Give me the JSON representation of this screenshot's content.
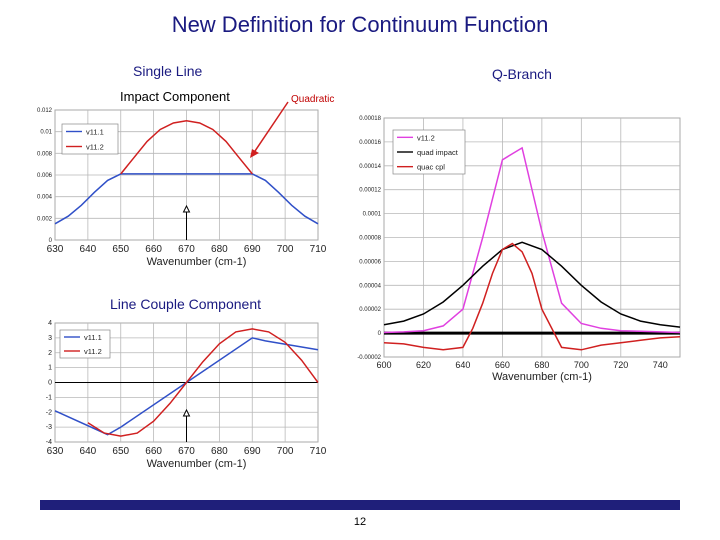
{
  "slide": {
    "title": "New Definition for Continuum Function",
    "left_heading": "Single Line",
    "right_heading": "Q-Branch",
    "impact_label": "Impact Component",
    "quadratic_label": "Quadratic",
    "couple_label": "Line Couple Component",
    "page_number": "12",
    "colors": {
      "title": "#1a1a80",
      "footer_bar": "#1f1f7a",
      "blue": "#3050c8",
      "red": "#d02020",
      "magenta": "#e040e0",
      "black": "#000000"
    }
  },
  "chart_data": [
    {
      "type": "line",
      "id": "impact",
      "xlabel": "Wavenumber (cm-1)",
      "xlim": [
        630,
        710
      ],
      "ylim": [
        0,
        0.012
      ],
      "xticks": [
        630,
        640,
        650,
        660,
        670,
        680,
        690,
        700,
        710
      ],
      "yticks": [
        "0",
        "0.002",
        "0.004",
        "0.006",
        "0.008",
        "0.01",
        "0.012"
      ],
      "legend": "top-left",
      "grid": true,
      "series": [
        {
          "name": "v11.1",
          "color": "#3050c8",
          "x": [
            630,
            634,
            638,
            642,
            646,
            650,
            670,
            690,
            694,
            698,
            702,
            706,
            710
          ],
          "y": [
            0.0015,
            0.0022,
            0.0032,
            0.0044,
            0.0055,
            0.0061,
            0.0061,
            0.0061,
            0.0055,
            0.0044,
            0.0032,
            0.0022,
            0.0015
          ]
        },
        {
          "name": "v11.2",
          "color": "#d02020",
          "x": [
            650,
            654,
            658,
            662,
            666,
            670,
            674,
            678,
            682,
            686,
            690
          ],
          "y": [
            0.0061,
            0.0076,
            0.0091,
            0.0102,
            0.0108,
            0.011,
            0.0108,
            0.0102,
            0.0091,
            0.0076,
            0.0061
          ]
        }
      ]
    },
    {
      "type": "line",
      "id": "couple",
      "xlabel": "Wavenumber (cm-1)",
      "xlim": [
        630,
        710
      ],
      "ylim": [
        -4,
        4
      ],
      "xticks": [
        630,
        640,
        650,
        660,
        670,
        680,
        690,
        700,
        710
      ],
      "yticks": [
        "4",
        "3",
        "2",
        "1",
        "0",
        "-1",
        "-2",
        "-3",
        "-4"
      ],
      "legend": "top-left",
      "grid": true,
      "series": [
        {
          "name": "v11.1",
          "color": "#3050c8",
          "x": [
            630,
            646,
            650,
            670,
            690,
            694,
            710
          ],
          "y": [
            -1.9,
            -3.5,
            -3.0,
            0,
            3.0,
            2.8,
            2.2
          ]
        },
        {
          "name": "v11.2",
          "color": "#d02020",
          "x": [
            640,
            645,
            650,
            655,
            660,
            665,
            670,
            675,
            680,
            685,
            690,
            695,
            700,
            705,
            710
          ],
          "y": [
            -2.7,
            -3.4,
            -3.6,
            -3.4,
            -2.6,
            -1.4,
            0,
            1.4,
            2.6,
            3.4,
            3.6,
            3.4,
            2.7,
            1.5,
            0
          ]
        }
      ]
    },
    {
      "type": "line",
      "id": "qbranch",
      "xlabel": "Wavenumber (cm-1)",
      "xlim": [
        600,
        750
      ],
      "ylim": [
        -2e-05,
        0.00018
      ],
      "xticks": [
        600,
        620,
        640,
        660,
        680,
        700,
        720,
        740
      ],
      "yticks": [
        "0.00018",
        "0.00016",
        "0.00014",
        "0.00012",
        "0.0001",
        "0.00008",
        "0.00006",
        "0.00004",
        "0.00002",
        "0",
        "-0.00002"
      ],
      "legend": "top-left",
      "grid": true,
      "series": [
        {
          "name": "v11.2",
          "color": "#e040e0",
          "x": [
            600,
            610,
            620,
            630,
            640,
            650,
            660,
            670,
            680,
            690,
            700,
            710,
            720,
            730,
            740,
            750
          ],
          "y": [
            5e-07,
            1e-06,
            2e-06,
            6e-06,
            2e-05,
            8e-05,
            0.000145,
            0.000155,
            8.5e-05,
            2.5e-05,
            8e-06,
            4e-06,
            2e-06,
            1.5e-06,
            1e-06,
            5e-07
          ]
        },
        {
          "name": "quad impact",
          "color": "#000000",
          "x": [
            600,
            610,
            620,
            630,
            640,
            650,
            660,
            670,
            680,
            690,
            700,
            710,
            720,
            730,
            740,
            750
          ],
          "y": [
            7e-06,
            1e-05,
            1.6e-05,
            2.6e-05,
            4e-05,
            5.6e-05,
            7e-05,
            7.6e-05,
            7e-05,
            5.6e-05,
            4e-05,
            2.6e-05,
            1.6e-05,
            1e-05,
            7e-06,
            5e-06
          ]
        },
        {
          "name": "quac cpl",
          "color": "#d02020",
          "x": [
            600,
            610,
            620,
            630,
            640,
            645,
            650,
            655,
            660,
            665,
            670,
            675,
            680,
            690,
            700,
            710,
            720,
            730,
            740,
            750
          ],
          "y": [
            -8e-06,
            -9e-06,
            -1.2e-05,
            -1.4e-05,
            -1.2e-05,
            4e-06,
            2.5e-05,
            5e-05,
            7e-05,
            7.5e-05,
            6.8e-05,
            5e-05,
            2e-05,
            -1.2e-05,
            -1.4e-05,
            -1e-05,
            -8e-06,
            -6e-06,
            -4e-06,
            -3e-06
          ]
        }
      ]
    }
  ]
}
